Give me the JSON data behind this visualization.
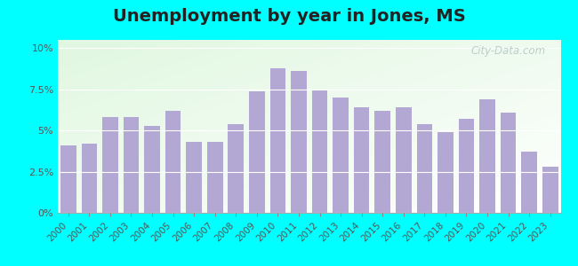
{
  "title": "Unemployment by year in Jones, MS",
  "years": [
    2000,
    2001,
    2002,
    2003,
    2004,
    2005,
    2006,
    2007,
    2008,
    2009,
    2010,
    2011,
    2012,
    2013,
    2014,
    2015,
    2016,
    2017,
    2018,
    2019,
    2020,
    2021,
    2022,
    2023
  ],
  "values": [
    4.1,
    4.2,
    5.8,
    5.8,
    5.3,
    6.2,
    4.3,
    4.3,
    5.4,
    7.4,
    8.8,
    8.6,
    7.5,
    7.0,
    6.4,
    6.2,
    6.4,
    5.4,
    4.9,
    5.7,
    6.9,
    6.1,
    3.7,
    2.8
  ],
  "bar_color": "#b3a8d4",
  "outer_background": "#00ffff",
  "yticks": [
    0,
    2.5,
    5.0,
    7.5,
    10.0
  ],
  "ylim": [
    0,
    10.5
  ],
  "title_fontsize": 14,
  "watermark": "City-Data.com"
}
